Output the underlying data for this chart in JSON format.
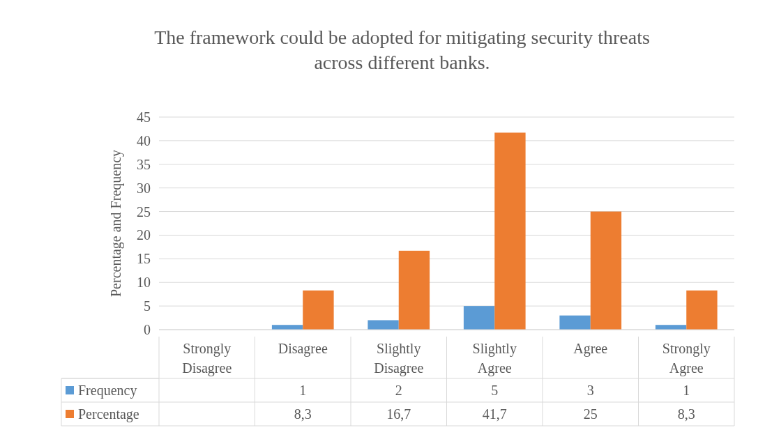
{
  "chart_data": {
    "type": "bar",
    "title": "The framework could be adopted for mitigating security threats across different banks.",
    "ylabel": "Percentage and Frequency",
    "categories": [
      "Strongly Disagree",
      "Disagree",
      "Slightly Disagree",
      "Slightly Agree",
      "Agree",
      "Strongly Agree"
    ],
    "series": [
      {
        "name": "Frequency",
        "color": "#5b9bd5",
        "values": [
          null,
          1,
          2,
          5,
          3,
          1
        ],
        "value_labels": [
          null,
          "1",
          "2",
          "5",
          "3",
          "1"
        ]
      },
      {
        "name": "Percentage",
        "color": "#ed7d31",
        "values": [
          null,
          8.3,
          16.7,
          41.7,
          25,
          8.3
        ],
        "value_labels": [
          null,
          "8,3",
          "16,7",
          "41,7",
          "25",
          "8,3"
        ]
      }
    ],
    "ylim": [
      0,
      45
    ],
    "yticks": [
      0,
      5,
      10,
      15,
      20,
      25,
      30,
      35,
      40,
      45
    ],
    "grid": "y",
    "legend": "bottom"
  }
}
